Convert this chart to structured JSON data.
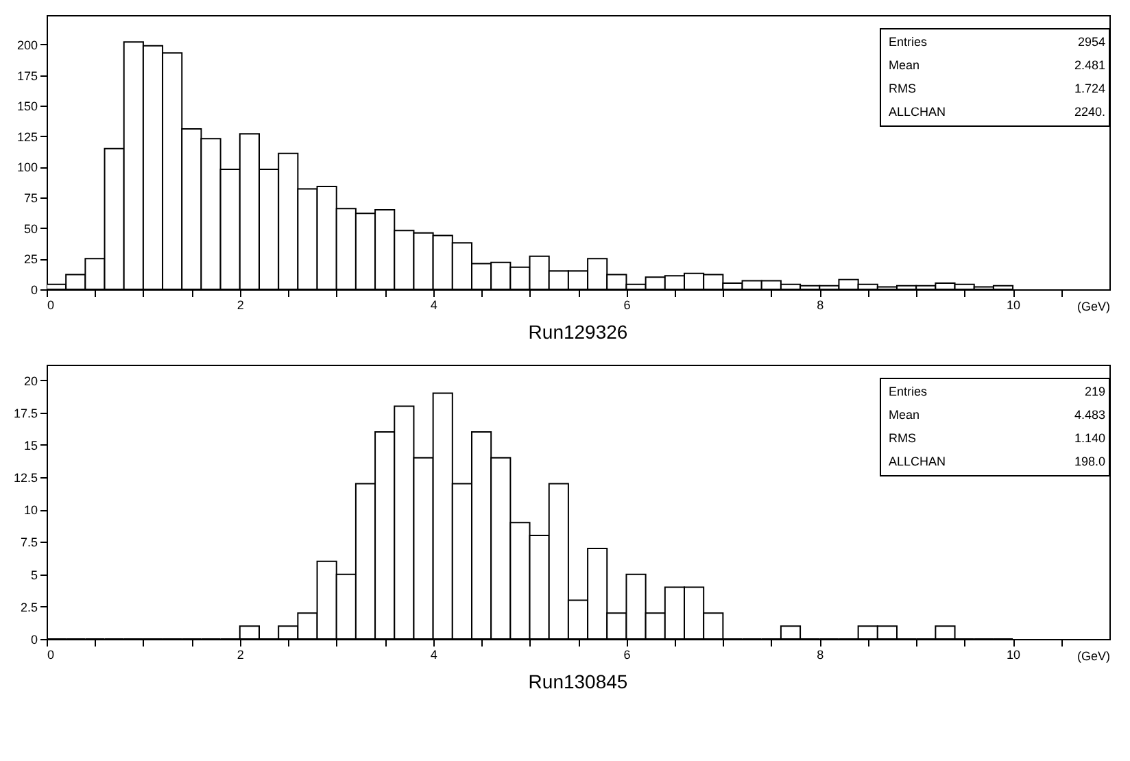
{
  "chart_data": [
    {
      "type": "histogram",
      "title": "Run129326",
      "xlabel": "(GeV)",
      "bins": [
        0,
        0.2,
        0.4,
        0.6,
        0.8,
        1,
        1.2,
        1.4,
        1.6,
        1.8,
        2,
        2.2,
        2.4,
        2.6,
        2.8,
        3,
        3.2,
        3.4,
        3.6,
        3.8,
        4,
        4.2,
        4.4,
        4.6,
        4.8,
        5,
        5.2,
        5.4,
        5.6,
        5.8,
        6,
        6.2,
        6.4,
        6.6,
        6.8,
        7,
        7.2,
        7.4,
        7.6,
        7.8,
        8,
        8.2,
        8.4,
        8.6,
        8.8,
        9,
        9.2,
        9.4,
        9.6,
        9.8,
        10
      ],
      "values": [
        4,
        12,
        25,
        115,
        202,
        199,
        193,
        131,
        123,
        98,
        127,
        98,
        111,
        82,
        84,
        66,
        62,
        65,
        48,
        46,
        44,
        38,
        21,
        22,
        18,
        27,
        15,
        15,
        25,
        12,
        4,
        10,
        11,
        13,
        12,
        5,
        7,
        7,
        4,
        3,
        3,
        8,
        4,
        2,
        3,
        3,
        5,
        4,
        2,
        3
      ],
      "color": "#000000",
      "xlim": [
        0,
        11
      ],
      "xticks": [
        0,
        {
          "value": 0.5,
          "label": null
        },
        {
          "value": 1,
          "label": null
        },
        {
          "value": 1.5,
          "label": null
        },
        2,
        {
          "value": 2.5,
          "label": null
        },
        {
          "value": 3,
          "label": null
        },
        {
          "value": 3.5,
          "label": null
        },
        4,
        {
          "value": 4.5,
          "label": null
        },
        {
          "value": 5,
          "label": null
        },
        {
          "value": 5.5,
          "label": null
        },
        6,
        {
          "value": 6.5,
          "label": null
        },
        {
          "value": 7,
          "label": null
        },
        {
          "value": 7.5,
          "label": null
        },
        8,
        {
          "value": 8.5,
          "label": null
        },
        {
          "value": 9,
          "label": null
        },
        {
          "value": 9.5,
          "label": null
        },
        10,
        {
          "value": 10.5,
          "label": null
        }
      ],
      "ylim": [
        0,
        224
      ],
      "yticks": [
        0,
        25,
        50,
        75,
        100,
        125,
        150,
        175,
        200
      ],
      "grid": false,
      "annotations": [
        "Entries",
        "2954",
        "Mean",
        "2.481",
        "RMS",
        "1.724",
        "ALLCHAN",
        "2240."
      ]
    },
    {
      "type": "histogram",
      "title": "Run130845",
      "xlabel": "(GeV)",
      "bins": [
        0,
        0.2,
        0.4,
        0.6,
        0.8,
        1,
        1.2,
        1.4,
        1.6,
        1.8,
        2,
        2.2,
        2.4,
        2.6,
        2.8,
        3,
        3.2,
        3.4,
        3.6,
        3.8,
        4,
        4.2,
        4.4,
        4.6,
        4.8,
        5,
        5.2,
        5.4,
        5.6,
        5.8,
        6,
        6.2,
        6.4,
        6.6,
        6.8,
        7,
        7.2,
        7.4,
        7.6,
        7.8,
        8,
        8.2,
        8.4,
        8.6,
        8.8,
        9,
        9.2,
        9.4,
        9.6,
        9.8,
        10
      ],
      "values": [
        0,
        0,
        0,
        0,
        0,
        0,
        0,
        0,
        0,
        0,
        1,
        0,
        1,
        2,
        6,
        5,
        12,
        16,
        18,
        14,
        19,
        12,
        16,
        14,
        9,
        8,
        12,
        3,
        7,
        2,
        5,
        2,
        4,
        4,
        2,
        0,
        0,
        0,
        1,
        0,
        0,
        0,
        1,
        1,
        0,
        0,
        1,
        0,
        0,
        0
      ],
      "color": "#000000",
      "xlim": [
        0,
        11
      ],
      "xticks": [
        0,
        {
          "value": 0.5,
          "label": null
        },
        {
          "value": 1,
          "label": null
        },
        {
          "value": 1.5,
          "label": null
        },
        2,
        {
          "value": 2.5,
          "label": null
        },
        {
          "value": 3,
          "label": null
        },
        {
          "value": 3.5,
          "label": null
        },
        4,
        {
          "value": 4.5,
          "label": null
        },
        {
          "value": 5,
          "label": null
        },
        {
          "value": 5.5,
          "label": null
        },
        6,
        {
          "value": 6.5,
          "label": null
        },
        {
          "value": 7,
          "label": null
        },
        {
          "value": 7.5,
          "label": null
        },
        8,
        {
          "value": 8.5,
          "label": null
        },
        {
          "value": 9,
          "label": null
        },
        {
          "value": 9.5,
          "label": null
        },
        10,
        {
          "value": 10.5,
          "label": null
        }
      ],
      "ylim": [
        0,
        21.2
      ],
      "yticks": [
        0,
        2.5,
        5,
        7.5,
        10,
        12.5,
        15,
        17.5,
        20
      ],
      "grid": false,
      "annotations": [
        "Entries",
        "219",
        "Mean",
        "4.483",
        "RMS",
        "1.140",
        "ALLCHAN",
        "198.0"
      ]
    }
  ]
}
